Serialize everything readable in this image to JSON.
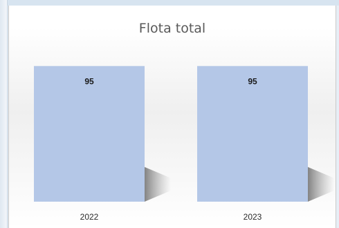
{
  "chart_data": {
    "type": "bar",
    "title": "Flota total",
    "categories": [
      "2022",
      "2023"
    ],
    "values": [
      95,
      95
    ],
    "ylim": [
      0,
      100
    ],
    "data_labels": [
      "95",
      "95"
    ],
    "bar_color": "#b4c7e7",
    "shadow": true,
    "grid": false,
    "legend": "none"
  }
}
